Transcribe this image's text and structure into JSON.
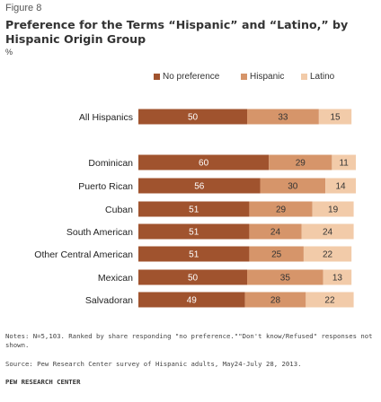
{
  "figure_label": "Figure 8",
  "title": "Preference for the Terms “Hispanic” and “Latino,” by Hispanic Origin Group",
  "unit": "%",
  "notes": "Notes: N=5,103. Ranked by share responding \"no preference.\"\"Don't know/Refused\" responses not shown.",
  "source": "Source: Pew Research Center survey of Hispanic adults, May24-July 28, 2013.",
  "org": "PEW RESEARCH CENTER",
  "colors": {
    "no_preference": "#a0532e",
    "hispanic": "#d6956a",
    "latino": "#f2cba9"
  },
  "chart_data": {
    "type": "bar",
    "orientation": "horizontal",
    "stacked": true,
    "categories": [
      "All Hispanics",
      "Dominican",
      "Puerto Rican",
      "Cuban",
      "South American",
      "Other Central American",
      "Mexican",
      "Salvadoran"
    ],
    "series": [
      {
        "name": "No preference",
        "values": [
          50,
          60,
          56,
          51,
          51,
          51,
          50,
          49
        ]
      },
      {
        "name": "Hispanic",
        "values": [
          33,
          29,
          30,
          29,
          24,
          25,
          35,
          28
        ]
      },
      {
        "name": "Latino",
        "values": [
          15,
          11,
          14,
          19,
          24,
          22,
          13,
          22
        ]
      }
    ],
    "xlim": [
      0,
      100
    ],
    "legend_position": "top-right",
    "grid": false
  }
}
